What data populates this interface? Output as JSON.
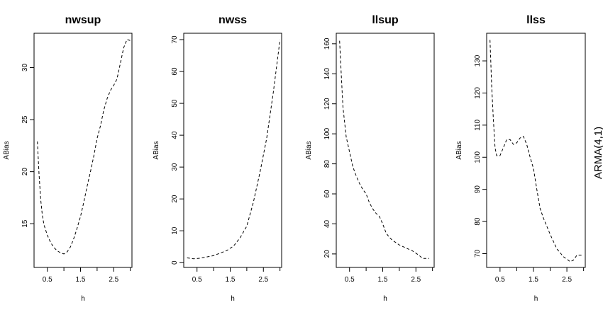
{
  "side_label": "ARMA(4,1)",
  "chart_data": [
    {
      "type": "line",
      "title": "nwsup",
      "xlabel": "h",
      "ylabel": "ABias",
      "xlim": [
        0.1,
        3.05
      ],
      "ylim": [
        10.8,
        33.3
      ],
      "xticks": [
        0.5,
        1.5,
        2.5
      ],
      "yticks": [
        15,
        20,
        25,
        30
      ],
      "series": [
        {
          "x": [
            0.2,
            0.25,
            0.3,
            0.35,
            0.4,
            0.5,
            0.6,
            0.7,
            0.8,
            0.9,
            1.0,
            1.1,
            1.2,
            1.3,
            1.4,
            1.5,
            1.6,
            1.7,
            1.8,
            1.9,
            2.0,
            2.1,
            2.2,
            2.3,
            2.4,
            2.5,
            2.6,
            2.7,
            2.8,
            2.9,
            3.0
          ],
          "y": [
            22.9,
            19.8,
            17.3,
            15.8,
            14.9,
            13.9,
            13.2,
            12.7,
            12.4,
            12.2,
            12.1,
            12.3,
            12.8,
            13.6,
            14.6,
            15.7,
            17.1,
            18.6,
            20.0,
            21.5,
            23.2,
            24.4,
            25.9,
            27.0,
            27.8,
            28.3,
            28.9,
            30.4,
            31.9,
            32.7,
            32.6
          ]
        }
      ]
    },
    {
      "type": "line",
      "title": "nwss",
      "xlabel": "h",
      "ylabel": "ABias",
      "xlim": [
        0.1,
        3.05
      ],
      "ylim": [
        -1.5,
        72
      ],
      "xticks": [
        0.5,
        1.5,
        2.5
      ],
      "yticks": [
        0,
        10,
        20,
        30,
        40,
        50,
        60,
        70
      ],
      "series": [
        {
          "x": [
            0.2,
            0.4,
            0.6,
            0.8,
            1.0,
            1.2,
            1.4,
            1.6,
            1.8,
            2.0,
            2.2,
            2.4,
            2.6,
            2.8,
            3.0
          ],
          "y": [
            1.5,
            1.2,
            1.4,
            1.8,
            2.2,
            3.0,
            3.8,
            5.2,
            7.8,
            11.5,
            19.0,
            28.5,
            39.0,
            53.5,
            70.0
          ]
        }
      ]
    },
    {
      "type": "line",
      "title": "llsup",
      "xlabel": "h",
      "ylabel": "ABias",
      "xlim": [
        0.1,
        3.05
      ],
      "ylim": [
        11,
        167
      ],
      "xticks": [
        0.5,
        1.5,
        2.5
      ],
      "yticks": [
        20,
        40,
        60,
        80,
        100,
        120,
        140,
        160
      ],
      "series": [
        {
          "x": [
            0.2,
            0.25,
            0.3,
            0.35,
            0.4,
            0.5,
            0.6,
            0.7,
            0.8,
            0.9,
            1.0,
            1.1,
            1.2,
            1.3,
            1.4,
            1.5,
            1.6,
            1.7,
            1.8,
            2.0,
            2.2,
            2.4,
            2.6,
            2.7,
            2.8,
            2.9
          ],
          "y": [
            162,
            140,
            118,
            108,
            98,
            88,
            78,
            72,
            67,
            63,
            60,
            54,
            50,
            47,
            45,
            40,
            34,
            31,
            29,
            26,
            24,
            22,
            19,
            17,
            17,
            17
          ]
        }
      ]
    },
    {
      "type": "line",
      "title": "llss",
      "xlabel": "h",
      "ylabel": "ABias",
      "xlim": [
        0.1,
        3.05
      ],
      "ylim": [
        65.7,
        138.6
      ],
      "xticks": [
        0.5,
        1.5,
        2.5
      ],
      "yticks": [
        70,
        80,
        90,
        100,
        110,
        120,
        130
      ],
      "series": [
        {
          "x": [
            0.2,
            0.25,
            0.3,
            0.35,
            0.4,
            0.5,
            0.6,
            0.7,
            0.8,
            0.9,
            1.0,
            1.1,
            1.2,
            1.3,
            1.4,
            1.5,
            1.6,
            1.7,
            1.8,
            2.0,
            2.2,
            2.4,
            2.6,
            2.7,
            2.8,
            2.9,
            3.0
          ],
          "y": [
            136.5,
            122,
            112,
            103,
            100.5,
            100.5,
            103,
            105.5,
            105.5,
            104,
            104.5,
            106,
            106.5,
            104,
            100,
            96.5,
            90,
            84,
            81,
            76,
            71.5,
            69,
            67.5,
            68,
            69.5,
            69.5,
            69.5
          ]
        }
      ]
    }
  ]
}
